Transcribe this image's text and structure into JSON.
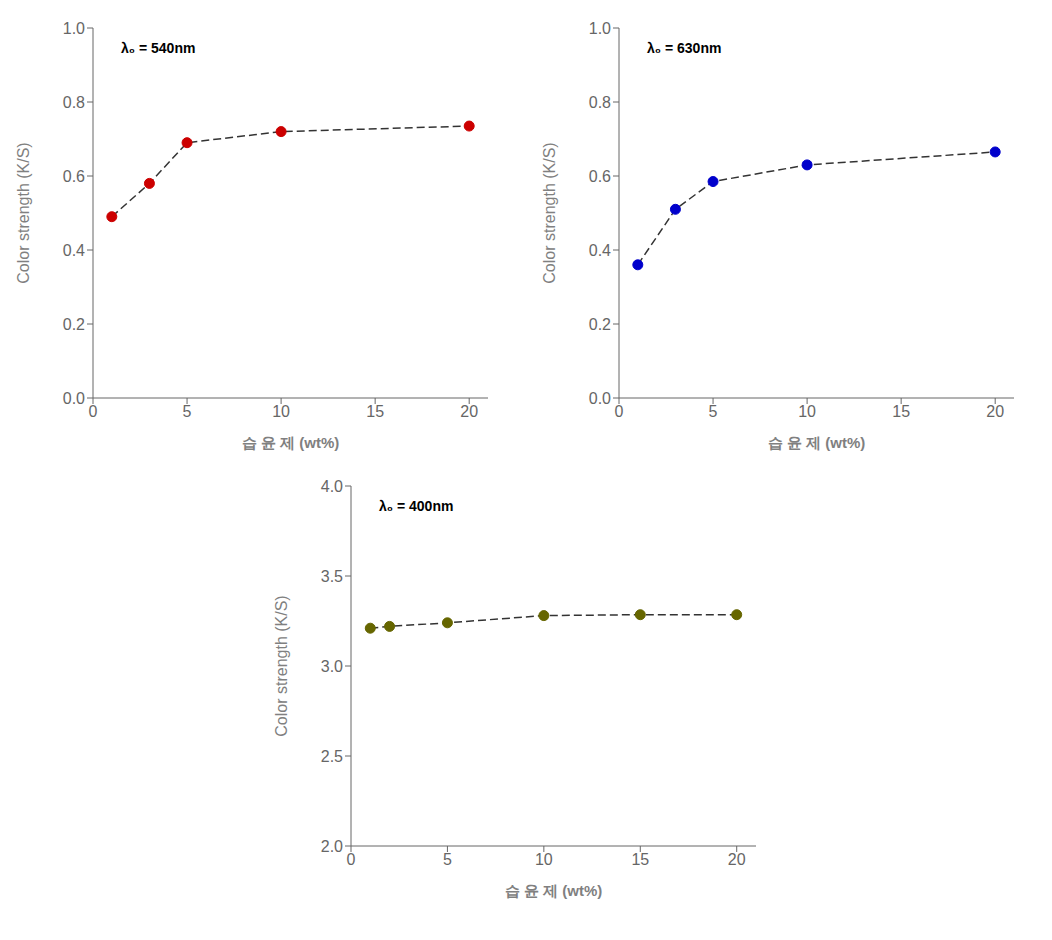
{
  "chart_data": [
    {
      "type": "line",
      "annotation": "λ₀ = 540nm",
      "xlabel": "습 윤 제 (wt%)",
      "ylabel": "Color strength (K/S)",
      "x": [
        1,
        3,
        5,
        10,
        20
      ],
      "values": [
        0.49,
        0.58,
        0.69,
        0.72,
        0.735
      ],
      "color": "#333333",
      "colors": [
        "#cc0000",
        "#cc0000",
        "#cc0000",
        "#cc0000",
        "#cc0000"
      ],
      "line_style": "dashed",
      "marker": "circle",
      "grid": false,
      "xlim": [
        0,
        21
      ],
      "xticks": [
        0,
        5,
        10,
        15,
        20
      ],
      "ylim": [
        0,
        1
      ],
      "yticks": [
        {
          "value": 0,
          "label": "0.0"
        },
        0.2,
        0.4,
        0.6,
        0.8,
        {
          "value": 1,
          "label": "1.0"
        }
      ]
    },
    {
      "type": "line",
      "annotation": "λ₀ = 630nm",
      "xlabel": "습 윤 제 (wt%)",
      "ylabel": "Color strength (K/S)",
      "x": [
        1,
        3,
        5,
        10,
        20
      ],
      "values": [
        0.36,
        0.51,
        0.585,
        0.63,
        0.665
      ],
      "color": "#333333",
      "colors": [
        "#0000cc",
        "#0000cc",
        "#0000cc",
        "#0000cc",
        "#0000cc"
      ],
      "line_style": "dashed",
      "marker": "circle",
      "grid": false,
      "xlim": [
        0,
        21
      ],
      "xticks": [
        0,
        5,
        10,
        15,
        20
      ],
      "ylim": [
        0,
        1
      ],
      "yticks": [
        {
          "value": 0,
          "label": "0.0"
        },
        0.2,
        0.4,
        0.6,
        0.8,
        {
          "value": 1,
          "label": "1.0"
        }
      ]
    },
    {
      "type": "line",
      "annotation": "λ₀ = 400nm",
      "xlabel": "습 윤 제 (wt%)",
      "ylabel": "Color strength (K/S)",
      "x": [
        1,
        2,
        5,
        10,
        15,
        20
      ],
      "values": [
        3.21,
        3.22,
        3.24,
        3.28,
        3.285,
        3.285
      ],
      "color": "#333333",
      "colors": [
        "#666600",
        "#666600",
        "#666600",
        "#666600",
        "#666600",
        "#666600"
      ],
      "line_style": "dashed",
      "marker": "circle",
      "grid": false,
      "xlim": [
        0,
        21
      ],
      "xticks": [
        0,
        5,
        10,
        15,
        20
      ],
      "ylim": [
        2,
        4
      ],
      "yticks": [
        {
          "value": 2,
          "label": "2.0"
        },
        2.5,
        {
          "value": 3,
          "label": "3.0"
        },
        3.5,
        {
          "value": 4,
          "label": "4.0"
        }
      ]
    }
  ]
}
